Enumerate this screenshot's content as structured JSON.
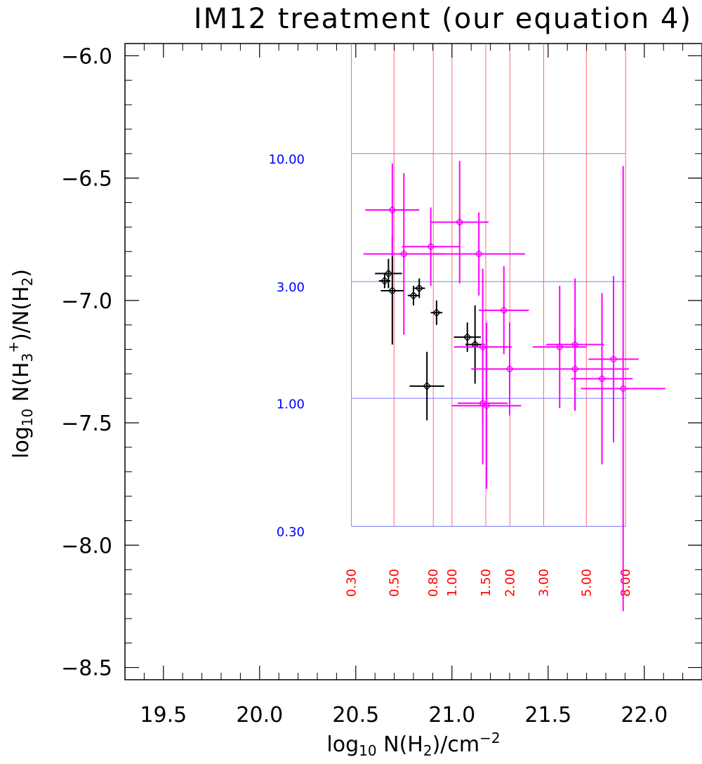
{
  "chart_data": {
    "type": "scatter",
    "title": "IM12 treatment (our equation 4)",
    "xlabel": "log10 N(H2)/cm^-2",
    "ylabel": "log10 N(H3+)/N(H2)",
    "xlim": [
      19.3,
      22.3
    ],
    "ylim": [
      -8.55,
      -5.95
    ],
    "x_ticks": [
      "19.5",
      "20.0",
      "20.5",
      "21.0",
      "21.5",
      "22.0"
    ],
    "y_ticks": [
      "-6.0",
      "-6.5",
      "-7.0",
      "-7.5",
      "-8.0",
      "-8.5"
    ],
    "x_tick_values": [
      19.5,
      20.0,
      20.5,
      21.0,
      21.5,
      22.0
    ],
    "y_tick_values": [
      -6.0,
      -6.5,
      -7.0,
      -7.5,
      -8.0,
      -8.5
    ],
    "guide_vertical": {
      "color": "#ff0000",
      "labels": [
        "0.30",
        "0.50",
        "0.80",
        "1.00",
        "1.50",
        "2.00",
        "3.00",
        "5.00",
        "8.00"
      ],
      "x": [
        20.477,
        20.699,
        20.903,
        21.0,
        21.176,
        21.301,
        21.477,
        21.699,
        21.903
      ]
    },
    "guide_horizontal": {
      "color": "#0000ff",
      "labels": [
        "10.00",
        "3.00",
        "1.00",
        "0.30"
      ],
      "y": [
        -6.4,
        -6.923,
        -7.4,
        -7.923
      ]
    },
    "series": [
      {
        "name": "black",
        "color": "#000000",
        "points": [
          {
            "x": 20.65,
            "y": -6.92,
            "xerr": 0.03,
            "yerr": 0.03
          },
          {
            "x": 20.67,
            "y": -6.89,
            "xerr": 0.07,
            "yerr": 0.06
          },
          {
            "x": 20.69,
            "y": -6.96,
            "xerr": 0.06,
            "yerr": 0.22
          },
          {
            "x": 20.8,
            "y": -6.98,
            "xerr": 0.03,
            "yerr": 0.04
          },
          {
            "x": 20.83,
            "y": -6.95,
            "xerr": 0.03,
            "yerr": 0.04
          },
          {
            "x": 20.87,
            "y": -7.35,
            "xerr": 0.09,
            "yerr": 0.14
          },
          {
            "x": 20.92,
            "y": -7.05,
            "xerr": 0.03,
            "yerr": 0.05
          },
          {
            "x": 21.08,
            "y": -7.15,
            "xerr": 0.07,
            "yerr": 0.06
          },
          {
            "x": 21.12,
            "y": -7.18,
            "xerr": 0.05,
            "yerr": 0.16
          }
        ]
      },
      {
        "name": "magenta",
        "color": "#ff00ff",
        "points": [
          {
            "x": 20.69,
            "y": -6.63,
            "xerr": 0.14,
            "yerr": 0.19
          },
          {
            "x": 20.75,
            "y": -6.81,
            "xerr": 0.21,
            "yerr": 0.33
          },
          {
            "x": 20.89,
            "y": -6.78,
            "xerr": 0.15,
            "yerr": 0.16
          },
          {
            "x": 21.04,
            "y": -6.68,
            "xerr": 0.15,
            "yerr": 0.25
          },
          {
            "x": 21.14,
            "y": -6.81,
            "xerr": 0.24,
            "yerr": 0.17
          },
          {
            "x": 21.27,
            "y": -7.04,
            "xerr": 0.13,
            "yerr": 0.18
          },
          {
            "x": 21.16,
            "y": -7.19,
            "xerr": 0.15,
            "yerr": 0.32
          },
          {
            "x": 21.3,
            "y": -7.28,
            "xerr": 0.2,
            "yerr": 0.19
          },
          {
            "x": 21.16,
            "y": -7.42,
            "xerr": 0.13,
            "yerr": 0.25
          },
          {
            "x": 21.18,
            "y": -7.43,
            "xerr": 0.18,
            "yerr": 0.34
          },
          {
            "x": 21.56,
            "y": -7.19,
            "xerr": 0.14,
            "yerr": 0.25
          },
          {
            "x": 21.64,
            "y": -7.18,
            "xerr": 0.15,
            "yerr": 0.27
          },
          {
            "x": 21.64,
            "y": -7.28,
            "xerr": 0.28,
            "yerr": 0.17
          },
          {
            "x": 21.78,
            "y": -7.32,
            "xerr": 0.16,
            "yerr": 0.35
          },
          {
            "x": 21.84,
            "y": -7.24,
            "xerr": 0.13,
            "yerr": 0.34
          },
          {
            "x": 21.89,
            "y": -7.36,
            "xerr": 0.22,
            "yerr": 0.91
          }
        ]
      }
    ]
  }
}
